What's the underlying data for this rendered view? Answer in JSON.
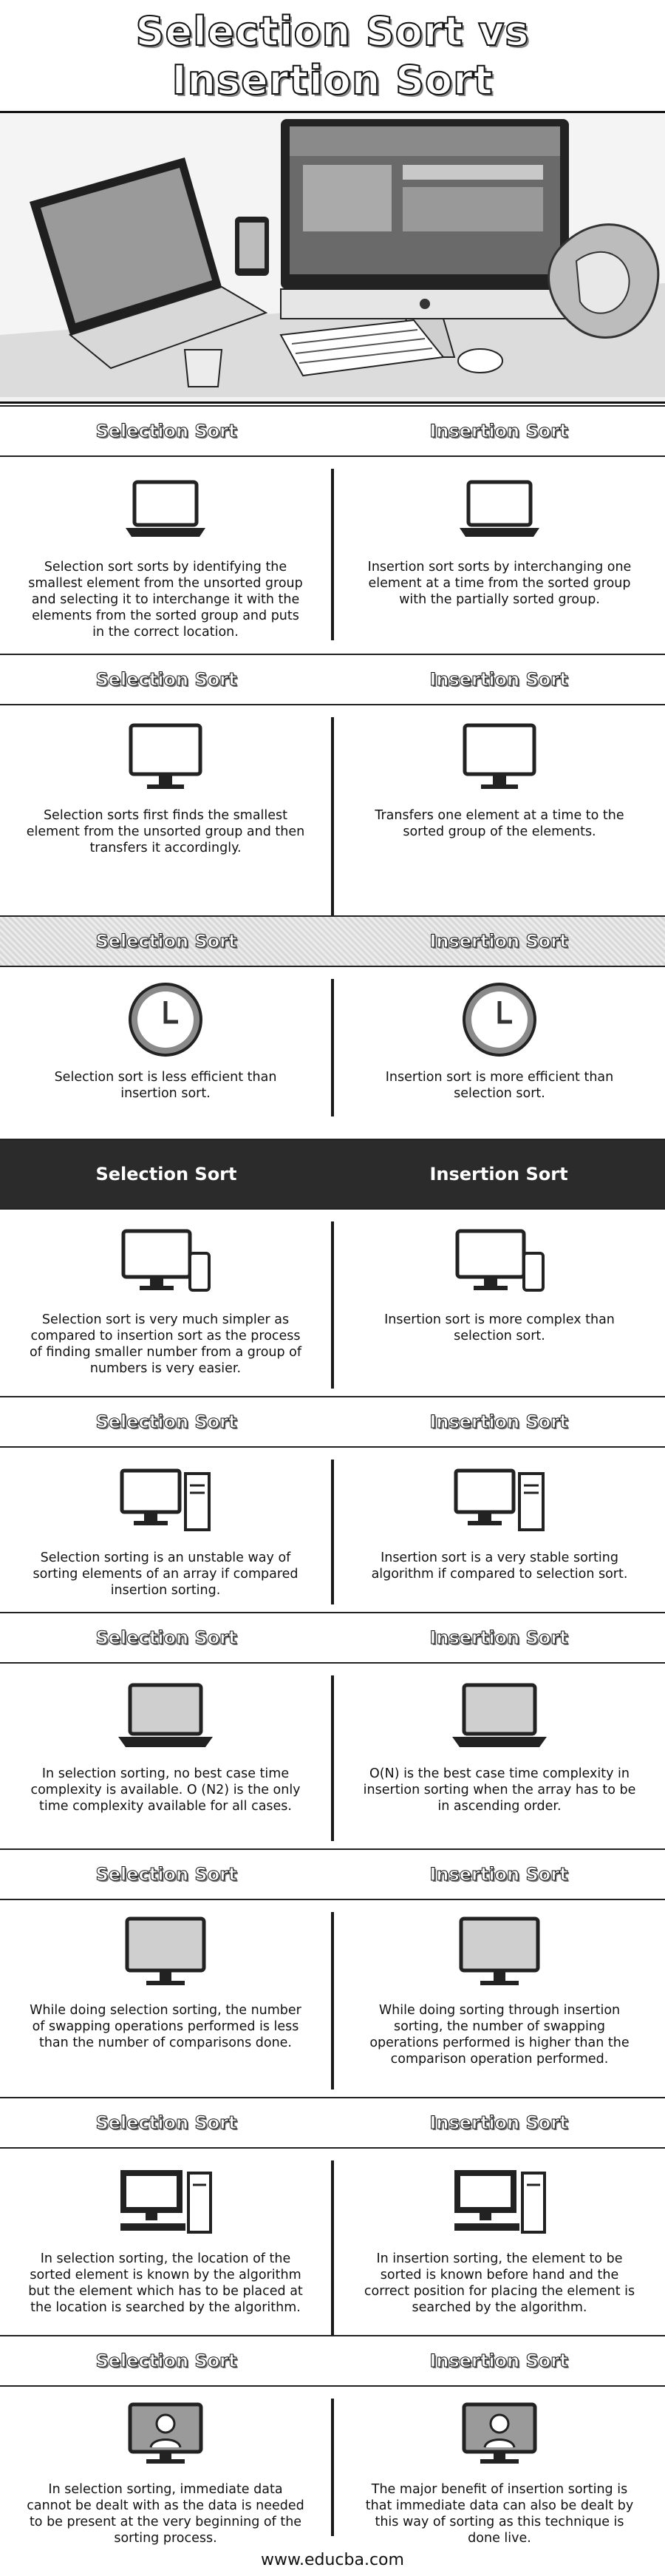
{
  "title": {
    "line1": "Selection Sort vs",
    "line2": "Insertion Sort"
  },
  "hero": {
    "icon": "desk-computers-photo"
  },
  "rows": [
    {
      "header_left": "Selection Sort",
      "header_right": "Insertion Sort",
      "icon_left": "laptop-icon",
      "icon_right": "laptop-icon",
      "left": "Selection sort sorts by identifying the smallest element from the unsorted group and selecting it to interchange it with the elements from the sorted group and puts in the correct location.",
      "right": "Insertion sort sorts by interchanging one element at a time from the sorted group with the partially sorted group."
    },
    {
      "header_left": "Selection Sort",
      "header_right": "Insertion Sort",
      "icon_left": "monitor-icon",
      "icon_right": "monitor-icon",
      "left": "Selection sorts first finds the smallest element from the unsorted group and then transfers it accordingly.",
      "right": "Transfers one element at a time to the sorted group of the elements."
    },
    {
      "header_left": "Selection Sort",
      "header_right": "Insertion Sort",
      "icon_left": "clock-icon",
      "icon_right": "clock-icon",
      "left": "Selection sort is less efficient than insertion sort.",
      "right": "Insertion sort is more efficient than selection sort."
    },
    {
      "header_left": "Selection Sort",
      "header_right": "Insertion Sort",
      "icon_left": "desktop-phone-icon",
      "icon_right": "desktop-phone-icon",
      "left": "Selection sort is very much simpler as compared to insertion sort as the process of finding smaller number from a group of numbers is very easier.",
      "right": "Insertion sort is more complex than selection sort."
    },
    {
      "header_left": "Selection Sort",
      "header_right": "Insertion Sort",
      "icon_left": "computer-tower-icon",
      "icon_right": "computer-tower-icon",
      "left": "Selection sorting is an unstable way of sorting elements of an array if compared insertion sorting.",
      "right": "Insertion sort is a very stable sorting algorithm if compared to selection sort."
    },
    {
      "header_left": "Selection Sort",
      "header_right": "Insertion Sort",
      "icon_left": "laptop-icon",
      "icon_right": "laptop-icon",
      "left": "In selection sorting, no best case time complexity is available. O (N2) is the only time complexity available for all cases.",
      "right": "O(N) is the best case time complexity in insertion sorting when the array has to be in ascending order."
    },
    {
      "header_left": "Selection Sort",
      "header_right": "Insertion Sort",
      "icon_left": "monitor-icon",
      "icon_right": "monitor-icon",
      "left": "While doing selection sorting, the number of swapping operations performed is less than the number of comparisons done.",
      "right": "While doing sorting through insertion sorting, the number of swapping operations performed is higher than the comparison operation performed."
    },
    {
      "header_left": "Selection Sort",
      "header_right": "Insertion Sort",
      "icon_left": "workstation-icon",
      "icon_right": "workstation-icon",
      "left": "In selection sorting, the location of the sorted element is known by the algorithm but the element which has to be placed at the location is searched by the algorithm.",
      "right": "In insertion sorting, the element to be sorted is known before hand and the correct position for placing the element is searched by the algorithm."
    },
    {
      "header_left": "Selection Sort",
      "header_right": "Insertion Sort",
      "icon_left": "support-monitor-icon",
      "icon_right": "support-monitor-icon",
      "left": "In selection sorting, immediate data cannot be dealt with as the data is needed to be present at the very beginning of the sorting process.",
      "right": "The major benefit of insertion sorting is that immediate data can also be dealt by this way of sorting as this technique is done live."
    }
  ],
  "footer": {
    "text": "www.educba.com"
  }
}
